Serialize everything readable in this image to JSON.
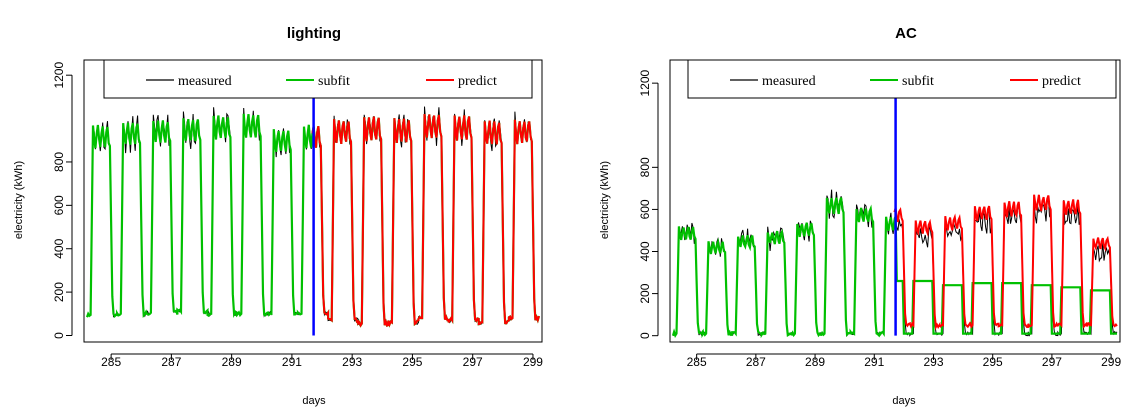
{
  "chart_data": [
    {
      "type": "line",
      "title": "lighting",
      "xlabel": "days",
      "ylabel": "electricity (kWh)",
      "xlim": [
        284.1,
        299.3
      ],
      "ylim": [
        -30,
        1270
      ],
      "x_ticks": [
        285,
        287,
        289,
        291,
        293,
        295,
        297,
        299
      ],
      "y_ticks": [
        0,
        200,
        400,
        600,
        800,
        1200
      ],
      "split_day": 291.72,
      "split_top": 1160,
      "colors": {
        "measured": "#000000",
        "subfit": "#00c000",
        "predict": "#ff0000",
        "split": "#0000ff"
      },
      "legend": {
        "entries": [
          "measured",
          "subfit",
          "predict"
        ],
        "placement": "top"
      },
      "daily_pattern": {
        "start": 284.2,
        "days": 15,
        "low_values": [
          95,
          100,
          105,
          110,
          100,
          100,
          100,
          100,
          70,
          55,
          60,
          80,
          70,
          60,
          80
        ],
        "high_values": [
          960,
          975,
          985,
          990,
          1005,
          1010,
          940,
          960,
          985,
          1000,
          990,
          1010,
          1005,
          980,
          985
        ],
        "fit_split": 7.52
      },
      "series": [
        {
          "name": "measured"
        },
        {
          "name": "subfit"
        },
        {
          "name": "predict"
        }
      ]
    },
    {
      "type": "line",
      "title": "AC",
      "xlabel": "days",
      "ylabel": "electricity (kWh)",
      "xlim": [
        284.1,
        299.3
      ],
      "ylim": [
        -30,
        1310
      ],
      "x_ticks": [
        285,
        287,
        289,
        291,
        293,
        295,
        297,
        299
      ],
      "y_ticks": [
        0,
        200,
        400,
        600,
        800,
        1200
      ],
      "split_day": 291.72,
      "split_top": 1200,
      "colors": {
        "measured": "#000000",
        "subfit": "#00c000",
        "predict": "#ff0000",
        "split": "#0000ff"
      },
      "legend": {
        "entries": [
          "measured",
          "subfit",
          "predict"
        ],
        "placement": "top"
      },
      "daily_pattern": {
        "start": 284.2,
        "days": 15,
        "low_values": [
          10,
          10,
          10,
          10,
          10,
          10,
          10,
          10,
          10,
          10,
          10,
          10,
          10,
          10,
          10
        ],
        "high_values": [
          510,
          440,
          470,
          490,
          530,
          650,
          600,
          560,
          500,
          520,
          570,
          590,
          620,
          600,
          420
        ],
        "fit_split": 7.52,
        "subfit_after": [
          260,
          240,
          250,
          250,
          240,
          230,
          215
        ]
      },
      "series": [
        {
          "name": "measured"
        },
        {
          "name": "subfit"
        },
        {
          "name": "predict"
        }
      ]
    }
  ]
}
